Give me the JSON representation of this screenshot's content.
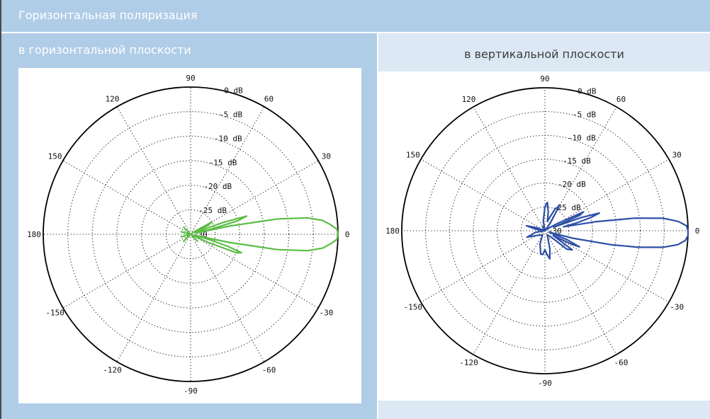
{
  "header": {
    "title": "Горизонтальная поляризация"
  },
  "panels": {
    "left": {
      "title": "в горизонтальной плоскости"
    },
    "right": {
      "title": "в вертикальной плоскости"
    }
  },
  "chart_data": [
    {
      "type": "polar",
      "title": "в горизонтальной плоскости",
      "color": "#5bbd45",
      "angle_labels": [
        "0",
        "30",
        "60",
        "90",
        "120",
        "150",
        "180",
        "-150",
        "-120",
        "-90",
        "-60",
        "-30"
      ],
      "radial_labels": [
        "0 dB",
        "-5 dB",
        "-10 dB",
        "-15 dB",
        "-20 dB",
        "-25 dB",
        "-30"
      ],
      "rlim": [
        -30,
        0
      ],
      "grid": true,
      "series": [
        {
          "angles_deg": [
            0,
            2,
            4,
            6,
            8,
            10,
            12,
            13,
            14,
            16,
            18,
            20,
            22,
            25,
            27,
            30,
            35,
            45,
            60,
            90,
            120,
            135,
            150,
            165,
            180,
            -165,
            -150,
            -135,
            -120,
            -90,
            -60,
            -45,
            -30,
            -25,
            -22,
            -20,
            -18,
            -16,
            -14,
            -13,
            -12,
            -10,
            -8,
            -6,
            -4,
            -2
          ],
          "values_db": [
            0,
            -0.2,
            -1.5,
            -3,
            -6,
            -12,
            -22,
            -29,
            -26,
            -20,
            -18,
            -23,
            -29,
            -29,
            -26,
            -25,
            -29,
            -30,
            -30,
            -30,
            -30,
            -28,
            -30,
            -28,
            -30,
            -28,
            -30,
            -28,
            -30,
            -30,
            -30,
            -28,
            -30,
            -26,
            -20,
            -19,
            -22,
            -26,
            -29,
            -29,
            -22,
            -12,
            -6,
            -3,
            -1.5,
            -0.2
          ]
        }
      ]
    },
    {
      "type": "polar",
      "title": "в вертикальной плоскости",
      "color": "#2d4fa6",
      "angle_labels": [
        "0",
        "30",
        "60",
        "90",
        "120",
        "150",
        "180",
        "-150",
        "-120",
        "-90",
        "-60",
        "-30"
      ],
      "radial_labels": [
        "0 dB",
        "-5 dB",
        "-10 dB",
        "-15 dB",
        "-20 dB",
        "-25 dB",
        "-30"
      ],
      "rlim": [
        -30,
        0
      ],
      "grid": true,
      "series": [
        {
          "angles_deg": [
            0,
            2,
            4,
            6,
            8,
            10,
            12,
            14,
            16,
            18,
            20,
            22,
            24,
            26,
            30,
            35,
            45,
            55,
            60,
            65,
            70,
            75,
            80,
            85,
            90,
            100,
            110,
            120,
            150,
            160,
            165,
            170,
            180,
            -170,
            -160,
            -150,
            -120,
            -110,
            -100,
            -95,
            -90,
            -85,
            -80,
            -75,
            -70,
            -60,
            -45,
            -40,
            -35,
            -30,
            -27,
            -25,
            -22,
            -18,
            -15,
            -12,
            -10,
            -8,
            -6,
            -4,
            -2
          ],
          "values_db": [
            0,
            -0.3,
            -2,
            -5,
            -11,
            -19,
            -26,
            -23,
            -20,
            -18,
            -22,
            -28,
            -22,
            -21,
            -27,
            -29,
            -30,
            -28,
            -24,
            -25,
            -27,
            -28,
            -26,
            -24,
            -25,
            -28,
            -30,
            -29,
            -30,
            -28,
            -26,
            -28,
            -30,
            -28,
            -26,
            -28,
            -29,
            -27,
            -25,
            -25,
            -26,
            -25,
            -24,
            -26,
            -28,
            -29,
            -28,
            -24,
            -23,
            -28,
            -24,
            -22,
            -25,
            -29,
            -24,
            -16,
            -10,
            -5,
            -2,
            -0.5,
            0
          ]
        }
      ]
    }
  ]
}
